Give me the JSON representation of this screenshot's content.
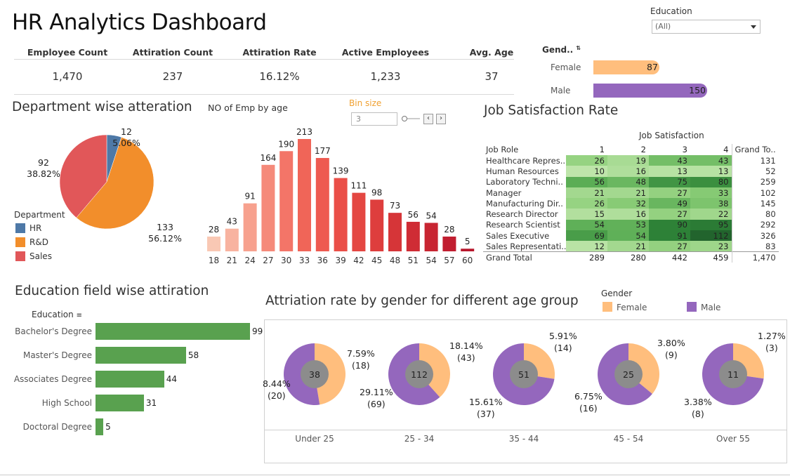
{
  "title": "HR Analytics Dashboard",
  "kpis": [
    {
      "label": "Employee Count",
      "value": "1,470"
    },
    {
      "label": "Attiration Count",
      "value": "237"
    },
    {
      "label": "Attiration Rate",
      "value": "16.12%"
    },
    {
      "label": "Active Employees",
      "value": "1,233"
    },
    {
      "label": "Avg. Age",
      "value": "37"
    }
  ],
  "education_filter": {
    "label": "Education",
    "value": "(All)"
  },
  "gender_chart": {
    "header": "Gend.. ",
    "sort_icon": "sort-az-icon",
    "items": [
      {
        "label": "Female",
        "value": 87,
        "color": "#ffbe7d"
      },
      {
        "label": "Male",
        "value": 150,
        "color": "#9467bd"
      }
    ],
    "max": 150
  },
  "chart_data": [
    {
      "id": "dept",
      "type": "pie",
      "title": "Department wise atteration",
      "legend_title": "Department",
      "slices": [
        {
          "name": "HR",
          "value": 12,
          "pct": "5.06%",
          "color": "#4e79a7"
        },
        {
          "name": "R&D",
          "value": 133,
          "pct": "56.12%",
          "color": "#f28e2b"
        },
        {
          "name": "Sales",
          "value": 92,
          "pct": "38.82%",
          "color": "#e15759"
        }
      ]
    },
    {
      "id": "age",
      "type": "bar",
      "title": "NO of Emp by age",
      "bin_label": "Bin size",
      "bin_value": "3",
      "categories": [
        "18",
        "21",
        "24",
        "27",
        "30",
        "33",
        "36",
        "39",
        "42",
        "45",
        "48",
        "51",
        "54",
        "57",
        "60"
      ],
      "values": [
        28,
        43,
        91,
        164,
        190,
        213,
        177,
        139,
        111,
        98,
        73,
        56,
        54,
        28,
        5
      ],
      "ylim": [
        0,
        213
      ]
    },
    {
      "id": "jobsat",
      "type": "table",
      "title": "Job Satisfaction Rate",
      "column_group": "Job Satisfaction",
      "row_header": "Job Role",
      "columns": [
        "1",
        "2",
        "3",
        "4"
      ],
      "total_header": "Grand To..",
      "rows": [
        {
          "role": "Healthcare Repres..",
          "values": [
            26,
            19,
            43,
            43
          ],
          "total": 131
        },
        {
          "role": "Human Resources",
          "values": [
            10,
            16,
            13,
            13
          ],
          "total": 52
        },
        {
          "role": "Laboratory Techni..",
          "values": [
            56,
            48,
            75,
            80
          ],
          "total": 259
        },
        {
          "role": "Manager",
          "values": [
            21,
            21,
            27,
            33
          ],
          "total": 102
        },
        {
          "role": "Manufacturing Dir..",
          "values": [
            26,
            32,
            49,
            38
          ],
          "total": 145
        },
        {
          "role": "Research Director",
          "values": [
            15,
            16,
            27,
            22
          ],
          "total": 80
        },
        {
          "role": "Research Scientist",
          "values": [
            54,
            53,
            90,
            95
          ],
          "total": 292
        },
        {
          "role": "Sales Executive",
          "values": [
            69,
            54,
            91,
            112
          ],
          "total": 326
        },
        {
          "role": "Sales Representati..",
          "values": [
            12,
            21,
            27,
            23
          ],
          "total": 83
        }
      ],
      "grand_total": {
        "label": "Grand Total",
        "values": [
          289,
          280,
          442,
          459
        ],
        "total": "1,470"
      }
    },
    {
      "id": "edu",
      "type": "bar",
      "orientation": "horizontal",
      "title": "Education field wise attiration",
      "axis_header": "Education",
      "categories": [
        "Bachelor's Degree",
        "Master's Degree",
        "Associates Degree",
        "High School",
        "Doctoral Degree"
      ],
      "values": [
        99,
        58,
        44,
        31,
        5
      ],
      "color": "#59a14f"
    },
    {
      "id": "agegender",
      "type": "pie",
      "title": "Attriation rate by gender for different age group",
      "legend_title": "Gender",
      "legend": [
        {
          "name": "Female",
          "color": "#ffbe7d"
        },
        {
          "name": "Male",
          "color": "#9467bd"
        }
      ],
      "groups": [
        {
          "category": "Under 25",
          "total": 38,
          "female": {
            "pct": "7.59%",
            "count": "(18)",
            "value": 18
          },
          "male": {
            "pct": "8.44%",
            "count": "(20)",
            "value": 20
          }
        },
        {
          "category": "25 - 34",
          "total": 112,
          "female": {
            "pct": "18.14%",
            "count": "(43)",
            "value": 43
          },
          "male": {
            "pct": "29.11%",
            "count": "(69)",
            "value": 69
          }
        },
        {
          "category": "35 - 44",
          "total": 51,
          "female": {
            "pct": "5.91%",
            "count": "(14)",
            "value": 14
          },
          "male": {
            "pct": "15.61%",
            "count": "(37)",
            "value": 37
          }
        },
        {
          "category": "45 - 54",
          "total": 25,
          "female": {
            "pct": "3.80%",
            "count": "(9)",
            "value": 9
          },
          "male": {
            "pct": "6.75%",
            "count": "(16)",
            "value": 16
          }
        },
        {
          "category": "Over 55",
          "total": 11,
          "female": {
            "pct": "1.27%",
            "count": "(3)",
            "value": 3
          },
          "male": {
            "pct": "3.38%",
            "count": "(8)",
            "value": 8
          }
        }
      ]
    }
  ]
}
